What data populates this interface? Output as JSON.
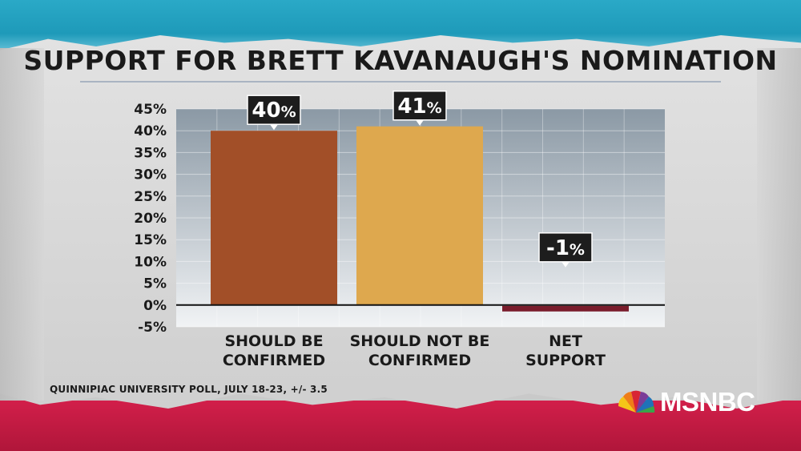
{
  "title": "SUPPORT FOR BRETT KAVANAUGH'S NOMINATION",
  "source": "QUINNIPIAC UNIVERSITY POLL, JULY 18-23, +/- 3.5",
  "network": "MSNBC",
  "logo_icon": "peacock-icon",
  "colors": {
    "bar_confirmed": "#a24f28",
    "bar_not_confirmed": "#dea84e",
    "bar_net": "#7a1c2c",
    "plot_bg_top": "#8b99a5",
    "plot_bg_bottom": "#f1f3f5",
    "label_bg": "#1d1d1d"
  },
  "chart_data": {
    "type": "bar",
    "title": "SUPPORT FOR BRETT KAVANAUGH'S NOMINATION",
    "categories": [
      [
        "SHOULD BE",
        "CONFIRMED"
      ],
      [
        "SHOULD NOT BE",
        "CONFIRMED"
      ],
      [
        "NET",
        "SUPPORT"
      ]
    ],
    "values": [
      40,
      41,
      -1
    ],
    "data_labels": [
      {
        "num": "40",
        "unit": "%"
      },
      {
        "num": "41",
        "unit": "%"
      },
      {
        "num": "-1",
        "unit": "%"
      }
    ],
    "ylim": [
      -5,
      45
    ],
    "yticks": [
      45,
      40,
      35,
      30,
      25,
      20,
      15,
      10,
      5,
      0,
      -5
    ],
    "ytick_labels": [
      "45%",
      "40%",
      "35%",
      "30%",
      "25%",
      "20%",
      "15%",
      "10%",
      "5%",
      "0%",
      "-5%"
    ],
    "grid": true,
    "legend": "none"
  }
}
